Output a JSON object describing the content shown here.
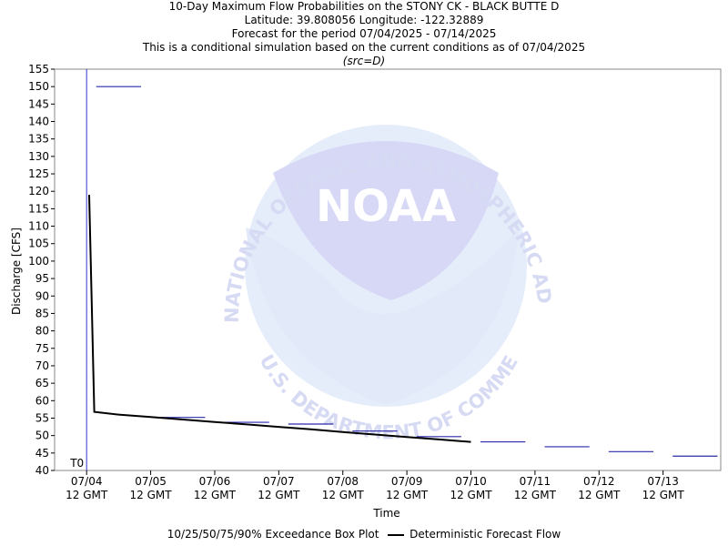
{
  "title": {
    "line1": "10-Day Maximum Flow Probabilities on the STONY CK - BLACK BUTTE D",
    "line2": "Latitude: 39.808056 Longitude: -122.32889",
    "line3": "Forecast for the period 07/04/2025 - 07/14/2025",
    "line4": "This is a conditional simulation based on the current conditions as of 07/04/2025",
    "line5": "(src=D)"
  },
  "watermark": {
    "logo_text": "NOAA",
    "ring_top": "NATIONAL OCEANIC AND ATMOSPHERIC ADMINISTRATION",
    "ring_bottom": "U.S. DEPARTMENT OF COMMERCE"
  },
  "legend": {
    "box_label": "10/25/50/75/90% Exceedance Box Plot",
    "line_label": "Deterministic Forecast Flow"
  },
  "colors": {
    "box": "#2a2aa8",
    "deterministic": "#000000",
    "t0_line": "#3333cc",
    "watermark": "#c8c8f4"
  },
  "chart_data": {
    "type": "line",
    "xlabel": "Time",
    "ylabel": "Discharge [CFS]",
    "ylim": [
      40,
      155
    ],
    "y_ticks": [
      40,
      45,
      50,
      55,
      60,
      65,
      70,
      75,
      80,
      85,
      90,
      95,
      100,
      105,
      110,
      115,
      120,
      125,
      130,
      135,
      140,
      145,
      150,
      155
    ],
    "x_range_days": [
      -0.5,
      9.9
    ],
    "x_ticks": [
      {
        "day": 0,
        "label1": "07/04",
        "label2": "12 GMT"
      },
      {
        "day": 1,
        "label1": "07/05",
        "label2": "12 GMT"
      },
      {
        "day": 2,
        "label1": "07/06",
        "label2": "12 GMT"
      },
      {
        "day": 3,
        "label1": "07/07",
        "label2": "12 GMT"
      },
      {
        "day": 4,
        "label1": "07/08",
        "label2": "12 GMT"
      },
      {
        "day": 5,
        "label1": "07/09",
        "label2": "12 GMT"
      },
      {
        "day": 6,
        "label1": "07/10",
        "label2": "12 GMT"
      },
      {
        "day": 7,
        "label1": "07/11",
        "label2": "12 GMT"
      },
      {
        "day": 8,
        "label1": "07/12",
        "label2": "12 GMT"
      },
      {
        "day": 9,
        "label1": "07/13",
        "label2": "12 GMT"
      }
    ],
    "t0": {
      "day": 0,
      "label": "T0"
    },
    "exceedance_boxes": [
      {
        "start": 0.15,
        "end": 0.85,
        "value": 150
      },
      {
        "start": 1.15,
        "end": 1.85,
        "value": 55.2
      },
      {
        "start": 2.15,
        "end": 2.85,
        "value": 53.8
      },
      {
        "start": 3.15,
        "end": 3.85,
        "value": 53.3
      },
      {
        "start": 4.15,
        "end": 4.85,
        "value": 51.3
      },
      {
        "start": 5.15,
        "end": 5.85,
        "value": 49.7
      },
      {
        "start": 6.15,
        "end": 6.85,
        "value": 48.2
      },
      {
        "start": 7.15,
        "end": 7.85,
        "value": 46.8
      },
      {
        "start": 8.15,
        "end": 8.85,
        "value": 45.4
      },
      {
        "start": 9.15,
        "end": 9.85,
        "value": 44.1
      }
    ],
    "series": [
      {
        "name": "Deterministic Forecast Flow",
        "x_days": [
          0.04,
          0.08,
          0.12,
          0.2,
          0.5,
          1.0,
          1.5,
          2.0,
          2.5,
          3.0,
          3.5,
          4.0,
          4.5,
          5.0,
          5.5,
          6.0
        ],
        "values": [
          119,
          88,
          56.8,
          56.6,
          56.0,
          55.3,
          54.6,
          53.9,
          53.2,
          52.5,
          51.8,
          51.0,
          50.3,
          49.6,
          48.9,
          48.2
        ]
      }
    ]
  }
}
